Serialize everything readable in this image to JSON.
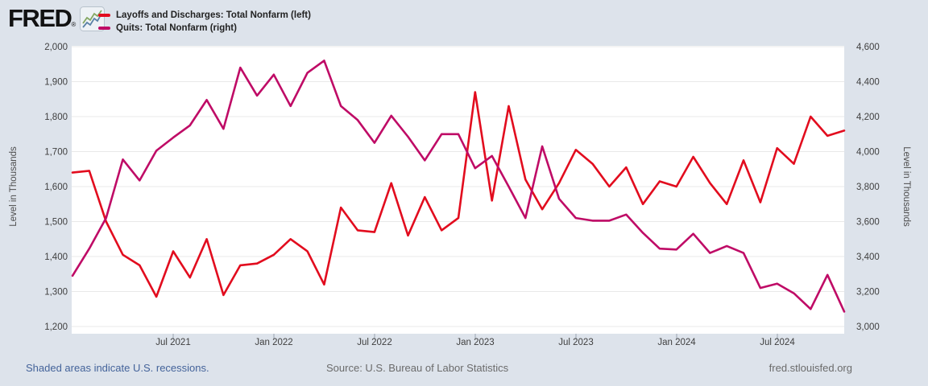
{
  "brand": {
    "name": "FRED",
    "registered_mark": "®"
  },
  "legend": {
    "items": [
      {
        "label": "Layoffs and Discharges: Total Nonfarm (left)",
        "color": "#e20c1e"
      },
      {
        "label": "Quits: Total Nonfarm (right)",
        "color": "#bf0b66"
      }
    ]
  },
  "chart_data": {
    "type": "line",
    "frequency": "monthly",
    "x_start": "2021-01",
    "x_end": "2024-11",
    "grid": true,
    "legend_position": "top-left",
    "x_tick_labels": [
      "Jul 2021",
      "Jan 2022",
      "Jul 2022",
      "Jan 2023",
      "Jul 2023",
      "Jan 2024",
      "Jul 2024"
    ],
    "x_tick_month_indices": [
      6,
      12,
      18,
      24,
      30,
      36,
      42
    ],
    "left_axis": {
      "label": "Level in Thousands",
      "min": 1200,
      "max": 2000,
      "tick_labels": [
        "2,000",
        "1,900",
        "1,800",
        "1,700",
        "1,600",
        "1,500",
        "1,400",
        "1,300",
        "1,200"
      ]
    },
    "right_axis": {
      "label": "Level in Thousands",
      "min": 3000,
      "max": 4600,
      "tick_labels": [
        "4,600",
        "4,400",
        "4,200",
        "4,000",
        "3,800",
        "3,600",
        "3,400",
        "3,200",
        "3,000"
      ]
    },
    "series": [
      {
        "name": "Layoffs and Discharges: Total Nonfarm",
        "axis": "left",
        "color": "#e20c1e",
        "values": [
          1640,
          1645,
          1500,
          1405,
          1375,
          1285,
          1415,
          1340,
          1450,
          1290,
          1375,
          1380,
          1405,
          1450,
          1415,
          1320,
          1540,
          1475,
          1470,
          1610,
          1460,
          1570,
          1475,
          1510,
          1870,
          1560,
          1830,
          1620,
          1535,
          1610,
          1705,
          1665,
          1600,
          1655,
          1550,
          1615,
          1600,
          1685,
          1610,
          1550,
          1675,
          1555,
          1710,
          1665,
          1800,
          1745,
          1760
        ]
      },
      {
        "name": "Quits: Total Nonfarm",
        "axis": "right",
        "color": "#bf0b66",
        "values": [
          3290,
          3445,
          3620,
          3955,
          3835,
          4005,
          4080,
          4150,
          4295,
          4130,
          4480,
          4320,
          4440,
          4260,
          4450,
          4520,
          4260,
          4180,
          4050,
          4205,
          4085,
          3950,
          4100,
          4100,
          3905,
          3975,
          3800,
          3620,
          4030,
          3730,
          3620,
          3605,
          3605,
          3640,
          3535,
          3445,
          3440,
          3530,
          3420,
          3460,
          3420,
          3220,
          3245,
          3190,
          3100,
          3295,
          3085
        ]
      }
    ]
  },
  "footer": {
    "recession_note": "Shaded areas indicate U.S. recessions.",
    "source": "Source: U.S. Bureau of Labor Statistics",
    "site": "fred.stlouisfed.org"
  }
}
